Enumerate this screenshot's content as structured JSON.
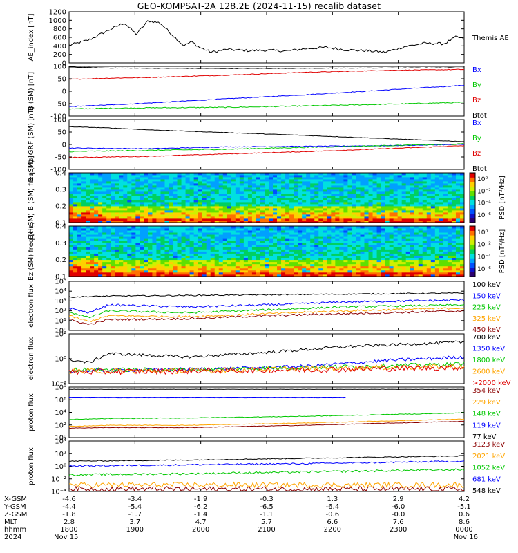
{
  "title": "GEO-KOMPSAT-2A 128.2E (2024-11-15) recalib dataset",
  "colors": {
    "black": "#000000",
    "blue": "#0000ff",
    "green": "#00c800",
    "red": "#e00000",
    "orange": "#ffa500",
    "darkred": "#8b0000"
  },
  "chart_data": [
    {
      "type": "line",
      "ylabel": "AE_index [nT]",
      "yticks": [
        "0",
        "200",
        "400",
        "600",
        "800",
        "1000",
        "1200"
      ],
      "ylim": [
        0,
        1250
      ],
      "series": [
        {
          "name": "Themis AE",
          "color": "#000000",
          "x": [
            0,
            0.05,
            0.1,
            0.14,
            0.17,
            0.2,
            0.23,
            0.26,
            0.29,
            0.31,
            0.33,
            0.36,
            0.4,
            0.45,
            0.5,
            0.55,
            0.6,
            0.65,
            0.7,
            0.75,
            0.8,
            0.85,
            0.9,
            0.95,
            0.98,
            1.0
          ],
          "values": [
            430,
            560,
            800,
            980,
            700,
            1030,
            980,
            700,
            420,
            520,
            380,
            260,
            330,
            300,
            310,
            290,
            350,
            380,
            320,
            300,
            260,
            400,
            480,
            470,
            640,
            580
          ]
        }
      ]
    },
    {
      "type": "line",
      "ylabel": "B (SM) [nT]",
      "yticks": [
        "-100",
        "-50",
        "0",
        "50",
        "100"
      ],
      "ylim": [
        -105,
        105
      ],
      "series": [
        {
          "name": "Bx",
          "color": "#0000ff",
          "x": [
            0,
            0.1,
            0.2,
            0.4,
            0.6,
            0.8,
            1.0
          ],
          "values": [
            -65,
            -58,
            -50,
            -32,
            -15,
            5,
            25
          ]
        },
        {
          "name": "By",
          "color": "#00c800",
          "x": [
            0,
            0.1,
            0.2,
            0.4,
            0.6,
            0.8,
            1.0
          ],
          "values": [
            -75,
            -72,
            -70,
            -68,
            -62,
            -55,
            -47
          ]
        },
        {
          "name": "Bz",
          "color": "#e00000",
          "x": [
            0,
            0.1,
            0.2,
            0.4,
            0.6,
            0.8,
            1.0
          ],
          "values": [
            50,
            55,
            58,
            68,
            80,
            88,
            92
          ]
        },
        {
          "name": "Btot",
          "color": "#000000",
          "x": [
            0,
            0.1,
            0.2,
            0.4,
            0.6,
            0.8,
            1.0
          ],
          "values": [
            102,
            98,
            97,
            96,
            97,
            98,
            99
          ]
        }
      ]
    },
    {
      "type": "line",
      "ylabel": "B (SM)-IGRF (SM) [nT]",
      "yticks": [
        "-100",
        "-50",
        "0",
        "50",
        "100"
      ],
      "ylim": [
        -105,
        105
      ],
      "series": [
        {
          "name": "Bx",
          "color": "#0000ff",
          "x": [
            0,
            0.2,
            0.4,
            0.6,
            0.8,
            1.0
          ],
          "values": [
            -15,
            -18,
            -10,
            -8,
            -5,
            0
          ]
        },
        {
          "name": "By",
          "color": "#00c800",
          "x": [
            0,
            0.2,
            0.4,
            0.6,
            0.8,
            1.0
          ],
          "values": [
            -30,
            -25,
            -20,
            -12,
            -5,
            2
          ]
        },
        {
          "name": "Bz",
          "color": "#e00000",
          "x": [
            0,
            0.2,
            0.4,
            0.6,
            0.8,
            1.0
          ],
          "values": [
            -55,
            -50,
            -40,
            -30,
            -18,
            -5
          ]
        },
        {
          "name": "Btot",
          "color": "#000000",
          "x": [
            0,
            0.1,
            0.2,
            0.4,
            0.6,
            0.8,
            1.0
          ],
          "values": [
            75,
            70,
            62,
            50,
            38,
            25,
            12
          ]
        }
      ]
    },
    {
      "type": "heatmap",
      "ylabel": "Bx (SM) B (SM) freq [Hz]",
      "yticks": [
        "0.1",
        "0.2",
        "0.3",
        "0.4"
      ],
      "ylim": [
        0.01,
        0.5
      ],
      "colorbar": {
        "label": "PSD [nT²/Hz]",
        "ticks": [
          "10⁰",
          "10⁻²",
          "10⁻⁴",
          "10⁻⁶"
        ]
      }
    },
    {
      "type": "heatmap",
      "ylabel": "Bz (SM) freq [Hz]",
      "yticks": [
        "0.1",
        "0.2",
        "0.3",
        "0.4"
      ],
      "ylim": [
        0.01,
        0.5
      ],
      "colorbar": {
        "label": "PSD [nT²/Hz]",
        "ticks": [
          "10⁰",
          "10⁻²",
          "10⁻⁴",
          "10⁻⁶"
        ]
      }
    },
    {
      "type": "line",
      "ylabel": "electron flux",
      "log": true,
      "yticks": [
        "10⁰",
        "10¹",
        "10²",
        "10³",
        "10⁴",
        "10⁵"
      ],
      "ylim_exp": [
        0,
        5
      ],
      "series": [
        {
          "name": "100 keV",
          "color": "#000000",
          "x": [
            0,
            0.1,
            0.4,
            0.7,
            1.0
          ],
          "values": [
            3.4,
            3.5,
            3.6,
            3.7,
            3.8
          ]
        },
        {
          "name": "150 keV",
          "color": "#0000ff",
          "x": [
            0,
            0.05,
            0.1,
            0.3,
            0.5,
            0.7,
            1.0
          ],
          "values": [
            2.3,
            1.8,
            2.6,
            2.4,
            2.6,
            2.9,
            3.1
          ]
        },
        {
          "name": "225 keV",
          "color": "#00c800",
          "x": [
            0,
            0.05,
            0.1,
            0.3,
            0.5,
            0.7,
            1.0
          ],
          "values": [
            1.9,
            1.3,
            2.0,
            1.8,
            2.1,
            2.4,
            2.6
          ]
        },
        {
          "name": "325 keV",
          "color": "#ffa500",
          "x": [
            0,
            0.05,
            0.1,
            0.3,
            0.5,
            0.7,
            1.0
          ],
          "values": [
            1.5,
            0.9,
            1.5,
            1.4,
            1.7,
            2.0,
            2.3
          ]
        },
        {
          "name": "450 keV",
          "color": "#8b0000",
          "x": [
            0,
            0.05,
            0.1,
            0.3,
            0.5,
            0.7,
            1.0
          ],
          "values": [
            1.1,
            0.6,
            1.1,
            1.2,
            1.5,
            1.7,
            2.0
          ]
        }
      ]
    },
    {
      "type": "line",
      "ylabel": "electron flux",
      "log": true,
      "yticks": [
        "10⁻²",
        "10⁰",
        "10²"
      ],
      "ylim_exp": [
        -2.3,
        2.0
      ],
      "series": [
        {
          "name": "700 keV",
          "color": "#000000",
          "x": [
            0,
            0.05,
            0.1,
            0.3,
            0.5,
            0.7,
            1.0
          ],
          "values": [
            -0.2,
            -0.5,
            0.3,
            0.0,
            0.4,
            0.9,
            1.3
          ]
        },
        {
          "name": "1350 keV",
          "color": "#0000ff",
          "x": [
            0,
            0.2,
            0.4,
            0.6,
            0.8,
            1.0
          ],
          "values": [
            -1.2,
            -1.1,
            -1.0,
            -0.8,
            -0.3,
            0.0
          ]
        },
        {
          "name": "1800 keV",
          "color": "#00c800",
          "x": [
            0,
            0.3,
            0.6,
            1.0
          ],
          "values": [
            -1.1,
            -1.1,
            -0.9,
            -0.6
          ]
        },
        {
          "name": "2600 keV",
          "color": "#ffa500",
          "x": [
            0,
            0.3,
            0.6,
            1.0
          ],
          "values": [
            -1.2,
            -1.2,
            -1.0,
            -0.8
          ]
        },
        {
          "name": ">2000 keV",
          "color": "#e00000",
          "x": [
            0,
            0.3,
            0.6,
            1.0
          ],
          "values": [
            -1.3,
            -1.2,
            -1.1,
            -0.9
          ]
        }
      ]
    },
    {
      "type": "line",
      "ylabel": "proton flux",
      "log": true,
      "yticks": [
        "10⁰",
        "10²",
        "10⁴",
        "10⁶",
        "10⁹"
      ],
      "ylim_exp": [
        0,
        9
      ],
      "series": [
        {
          "name": "354 keV",
          "color": "#8b0000",
          "x": [
            0,
            0.1,
            0.3,
            0.6,
            1.0
          ],
          "values": [
            1.7,
            1.8,
            1.8,
            2.2,
            2.9
          ]
        },
        {
          "name": "229 keV",
          "color": "#ffa500",
          "x": [
            0,
            0.1,
            0.3,
            0.6,
            1.0
          ],
          "values": [
            2.0,
            2.2,
            2.2,
            2.6,
            3.3
          ]
        },
        {
          "name": "148 keV",
          "color": "#00c800",
          "x": [
            0,
            0.1,
            0.3,
            0.6,
            1.0
          ],
          "values": [
            3.2,
            3.4,
            3.5,
            3.8,
            4.4
          ]
        },
        {
          "name": "119 keV",
          "color": "#0000ff",
          "x": [
            0,
            0.7
          ],
          "values": [
            7.1,
            7.1
          ]
        },
        {
          "name": "77 keV",
          "color": "#000000",
          "x": [
            0,
            1.0
          ],
          "values": [
            8.6,
            8.6
          ]
        }
      ]
    },
    {
      "type": "line",
      "ylabel": "proton flux",
      "log": true,
      "yticks": [
        "10⁻⁴",
        "10⁻²",
        "10⁰",
        "10²",
        "10⁴"
      ],
      "ylim_exp": [
        -4.5,
        4.0
      ],
      "series": [
        {
          "name": "3123 keV",
          "color": "#8b0000",
          "x": [
            0,
            1.0
          ],
          "values": [
            -4.1,
            -4.1
          ]
        },
        {
          "name": "2021 keV",
          "color": "#ffa500",
          "x": [
            0,
            1.0
          ],
          "values": [
            -3.4,
            -3.4
          ]
        },
        {
          "name": "1052 keV",
          "color": "#00c800",
          "x": [
            0,
            0.3,
            0.6,
            1.0
          ],
          "values": [
            -1.7,
            -1.5,
            -1.2,
            -0.8
          ]
        },
        {
          "name": "681 keV",
          "color": "#0000ff",
          "x": [
            0,
            0.3,
            0.6,
            1.0
          ],
          "values": [
            -0.2,
            0.0,
            0.2,
            0.6
          ]
        },
        {
          "name": "548 keV",
          "color": "#000000",
          "x": [
            0,
            0.3,
            0.6,
            1.0
          ],
          "values": [
            0.6,
            0.8,
            1.1,
            1.5
          ]
        }
      ]
    }
  ],
  "xaxis": {
    "rowlabels": [
      "X-GSM",
      "Y-GSM",
      "Z-GSM",
      "MLT",
      "hhmm",
      "2024"
    ],
    "columns": [
      [
        "-4.6",
        "-4.4",
        "-1.8",
        "2.8",
        "1800",
        "Nov 15"
      ],
      [
        "-3.4",
        "-5.4",
        "-1.7",
        "3.7",
        "1900",
        ""
      ],
      [
        "-1.9",
        "-6.2",
        "-1.4",
        "4.7",
        "2000",
        ""
      ],
      [
        "-0.3",
        "-6.5",
        "-1.1",
        "5.7",
        "2100",
        ""
      ],
      [
        "1.3",
        "-6.4",
        "-0.6",
        "6.6",
        "2200",
        ""
      ],
      [
        "2.9",
        "-6.0",
        "-0.0",
        "7.6",
        "2300",
        ""
      ],
      [
        "4.2",
        "-5.1",
        "0.6",
        "8.6",
        "0000",
        "Nov 16"
      ]
    ]
  },
  "legend_labels": {
    "ae": "Themis AE"
  }
}
